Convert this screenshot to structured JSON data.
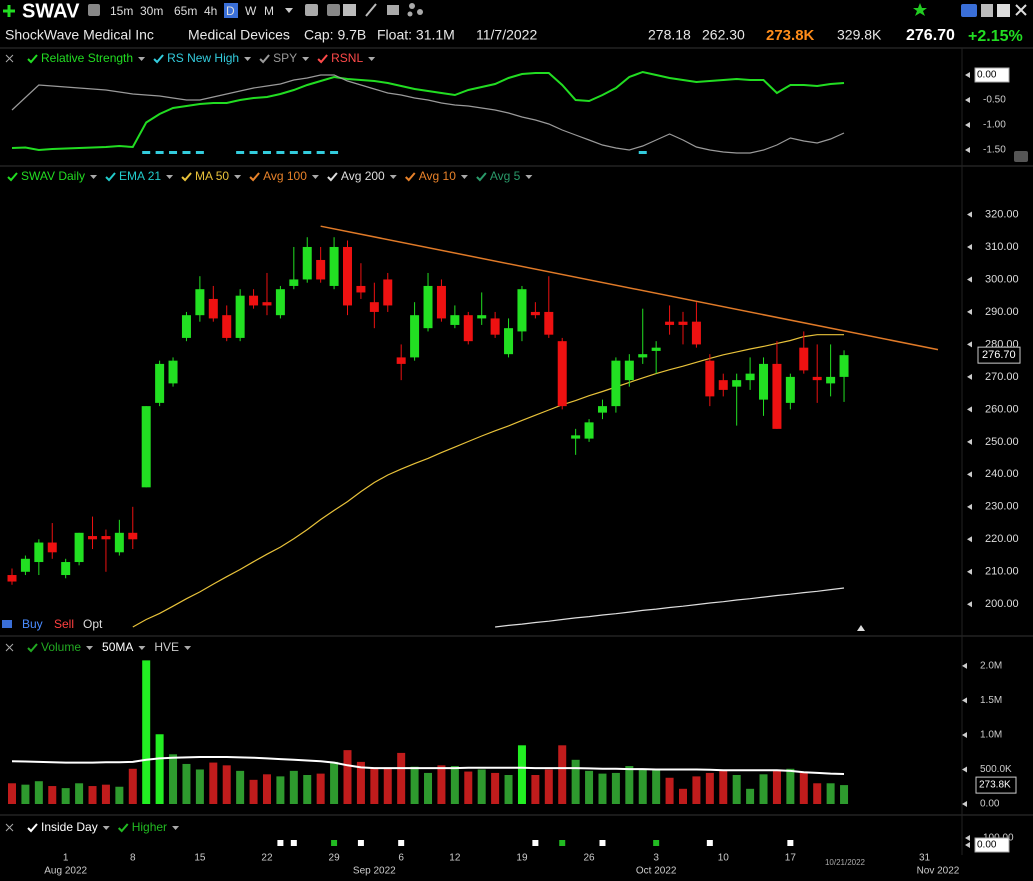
{
  "header": {
    "symbol": "SWAV",
    "timeframes": [
      "15m",
      "30m",
      "65m",
      "4h",
      "D",
      "W",
      "M"
    ],
    "active_timeframe": 4,
    "company": "ShockWave Medical Inc",
    "sector": "Medical Devices",
    "cap": "Cap: 9.7B",
    "float": "Float: 31.1M",
    "date": "11/7/2022",
    "high": "278.18",
    "low": "262.30",
    "volume": "273.8K",
    "avg_volume": "329.8K",
    "last": "276.70",
    "change": "+2.15%"
  },
  "controls": {
    "buy": "Buy",
    "sell": "Sell",
    "opt": "Opt"
  },
  "x_axis": {
    "dates": [
      "2022-07-26",
      "2022-07-27",
      "2022-07-28",
      "2022-07-29",
      "2022-08-01",
      "2022-08-02",
      "2022-08-03",
      "2022-08-04",
      "2022-08-05",
      "2022-08-08",
      "2022-08-09",
      "2022-08-10",
      "2022-08-11",
      "2022-08-12",
      "2022-08-15",
      "2022-08-16",
      "2022-08-17",
      "2022-08-18",
      "2022-08-19",
      "2022-08-22",
      "2022-08-23",
      "2022-08-24",
      "2022-08-25",
      "2022-08-26",
      "2022-08-29",
      "2022-08-30",
      "2022-08-31",
      "2022-09-01",
      "2022-09-02",
      "2022-09-06",
      "2022-09-07",
      "2022-09-08",
      "2022-09-09",
      "2022-09-12",
      "2022-09-13",
      "2022-09-14",
      "2022-09-15",
      "2022-09-16",
      "2022-09-19",
      "2022-09-20",
      "2022-09-21",
      "2022-09-22",
      "2022-09-23",
      "2022-09-26",
      "2022-09-27",
      "2022-09-28",
      "2022-09-29",
      "2022-09-30",
      "2022-10-03",
      "2022-10-04",
      "2022-10-05",
      "2022-10-06",
      "2022-10-07",
      "2022-10-10",
      "2022-10-11",
      "2022-10-12",
      "2022-10-13",
      "2022-10-14",
      "2022-10-17",
      "2022-10-18",
      "2022-10-19",
      "2022-10-20",
      "2022-10-21"
    ],
    "xticks": [
      {
        "value": "2022-08-01",
        "label": "1"
      },
      {
        "value": "2022-08-08",
        "label": "8"
      },
      {
        "value": "2022-08-15",
        "label": "15"
      },
      {
        "value": "2022-08-22",
        "label": "22"
      },
      {
        "value": "2022-08-29",
        "label": "29"
      },
      {
        "value": "2022-09-06",
        "label": "6"
      },
      {
        "value": "2022-09-12",
        "label": "12"
      },
      {
        "value": "2022-09-19",
        "label": "19"
      },
      {
        "value": "2022-09-26",
        "label": "26"
      },
      {
        "value": "2022-10-03",
        "label": "3"
      },
      {
        "value": "2022-10-10",
        "label": "10"
      },
      {
        "value": "2022-10-17",
        "label": "17"
      },
      {
        "value": "2022-10-31",
        "label": "31"
      }
    ],
    "month_ticks": [
      {
        "value": "2022-08-01",
        "label": "Aug 2022"
      },
      {
        "value": "2022-09-01",
        "label": "Sep 2022"
      },
      {
        "value": "2022-10-03",
        "label": "Oct 2022"
      },
      {
        "value": "2022-11-01",
        "label": "Nov 2022"
      }
    ],
    "cursor_label": "10/21/2022"
  },
  "chart_data": [
    {
      "type": "line",
      "ylim": [
        -1.7,
        0.14
      ],
      "yticks": [
        {
          "value": 0,
          "label": "0.00"
        },
        {
          "value": -0.5,
          "label": "-0.50"
        },
        {
          "value": -1,
          "label": "-1.00"
        },
        {
          "value": -1.5,
          "label": "-1.50"
        }
      ],
      "highlight_tick": 0,
      "series": [
        {
          "name": "Relative Strength",
          "color": "#22dd22",
          "values": [
            -1.46,
            -1.45,
            -1.5,
            -1.48,
            -1.47,
            -1.46,
            -1.45,
            -1.44,
            -1.42,
            -1.44,
            -0.95,
            -0.78,
            -0.66,
            -0.62,
            -0.58,
            -0.56,
            -0.56,
            -0.5,
            -0.46,
            -0.44,
            -0.38,
            -0.3,
            -0.2,
            -0.12,
            -0.04,
            -0.08,
            -0.1,
            -0.12,
            -0.16,
            -0.22,
            -0.28,
            -0.32,
            -0.36,
            -0.4,
            -0.3,
            -0.24,
            -0.18,
            -0.06,
            0.02,
            0.04,
            0.04,
            -0.2,
            -0.5,
            -0.52,
            -0.4,
            -0.26,
            -0.04,
            0.06,
            0,
            -0.06,
            -0.1,
            -0.14,
            -0.12,
            -0.1,
            -0.08,
            -0.1,
            -0.1,
            -0.36,
            -0.2,
            -0.2,
            -0.22,
            -0.18,
            -0.16
          ]
        },
        {
          "name": "RS New High",
          "color": "#33ccdd",
          "dates": [
            "2022-08-09",
            "2022-08-10",
            "2022-08-11",
            "2022-08-12",
            "2022-08-15",
            "2022-08-18",
            "2022-08-19",
            "2022-08-22",
            "2022-08-23",
            "2022-08-24",
            "2022-08-25",
            "2022-08-26",
            "2022-08-29",
            "2022-09-30"
          ]
        },
        {
          "name": "SPY",
          "color": "#9a9a9a",
          "values": [
            -0.7,
            -0.45,
            -0.2,
            -0.22,
            -0.24,
            -0.26,
            -0.28,
            -0.3,
            -0.34,
            -0.38,
            -0.4,
            -0.42,
            -0.46,
            -0.5,
            -0.5,
            -0.44,
            -0.38,
            -0.32,
            -0.26,
            -0.22,
            -0.18,
            -0.1,
            -0.06,
            0,
            0,
            -0.12,
            -0.2,
            -0.28,
            -0.36,
            -0.4,
            -0.46,
            -0.5,
            -0.56,
            -0.6,
            -0.62,
            -0.66,
            -0.7,
            -0.76,
            -0.84,
            -0.9,
            -0.98,
            -1.1,
            -1.2,
            -1.3,
            -1.4,
            -1.46,
            -1.5,
            -1.42,
            -1.3,
            -1.18,
            -1.3,
            -1.44,
            -1.5,
            -1.54,
            -1.56,
            -1.56,
            -1.5,
            -1.4,
            -1.26,
            -1.32,
            -1.36,
            -1.28,
            -1.16
          ]
        },
        {
          "name": "RSNL",
          "color": "#ff4a4a"
        }
      ]
    },
    {
      "type": "candlestick",
      "ylim": [
        193,
        326
      ],
      "yticks": [
        {
          "value": 200,
          "label": "200.00"
        },
        {
          "value": 210,
          "label": "210.00"
        },
        {
          "value": 220,
          "label": "220.00"
        },
        {
          "value": 230,
          "label": "230.00"
        },
        {
          "value": 240,
          "label": "240.00"
        },
        {
          "value": 250,
          "label": "250.00"
        },
        {
          "value": 260,
          "label": "260.00"
        },
        {
          "value": 270,
          "label": "270.00"
        },
        {
          "value": 280,
          "label": "280.00"
        },
        {
          "value": 290,
          "label": "290.00"
        },
        {
          "value": 300,
          "label": "300.00"
        },
        {
          "value": 310,
          "label": "310.00"
        },
        {
          "value": 320,
          "label": "320.00"
        }
      ],
      "last_price": {
        "value": 276.7,
        "label": "276.70"
      },
      "up_color": "#22e022",
      "down_color": "#ee1111",
      "series": [
        {
          "name": "SWAV Daily",
          "color": "#22dd22",
          "open": [
            209,
            210,
            213,
            219,
            209,
            213,
            221,
            221,
            216,
            222,
            236,
            262,
            268,
            282,
            289,
            294,
            289,
            282,
            295,
            293,
            289,
            298,
            300,
            306,
            298,
            310,
            298,
            293,
            300,
            276,
            276,
            285,
            298,
            286,
            289,
            288,
            288,
            277,
            284,
            290,
            290,
            281,
            251,
            251,
            259,
            261,
            269,
            276,
            278,
            287,
            287,
            287,
            275,
            269,
            267,
            269,
            263,
            274,
            262,
            279,
            270,
            268,
            270
          ],
          "high": [
            211,
            215,
            220,
            225,
            214,
            222,
            227,
            223,
            226,
            230,
            261,
            275,
            276,
            290,
            301,
            298,
            292,
            297,
            297,
            302,
            298,
            310,
            313,
            310,
            313,
            312,
            305,
            299,
            302,
            280,
            293,
            302,
            300,
            292,
            290,
            296,
            290,
            288,
            298,
            293,
            301,
            282,
            254,
            257,
            263,
            276,
            277,
            291,
            281,
            292,
            290,
            293,
            277,
            271,
            271,
            276,
            276,
            281,
            271,
            284,
            280,
            280,
            278.18
          ],
          "low": [
            206,
            209,
            209,
            214,
            208,
            212,
            217,
            210,
            215,
            217,
            236,
            261,
            267,
            281,
            287,
            287,
            281,
            281,
            291,
            289,
            288,
            297,
            299,
            299,
            297,
            289,
            294,
            285,
            290,
            269,
            275,
            284,
            287,
            285,
            280,
            286,
            282,
            276,
            281,
            288,
            282,
            260,
            246,
            250,
            257,
            259,
            267,
            274,
            271,
            283,
            280,
            279,
            261,
            264,
            255,
            266,
            258,
            254,
            260,
            271,
            262,
            264,
            262.3
          ],
          "close": [
            207,
            214,
            219,
            216,
            213,
            222,
            220,
            220,
            222,
            220,
            261,
            274,
            275,
            289,
            297,
            288,
            282,
            295,
            292,
            292,
            297,
            300,
            310,
            300,
            310,
            292,
            296,
            290,
            292,
            274,
            289,
            298,
            288,
            289,
            281,
            289,
            283,
            285,
            297,
            289,
            283,
            261,
            252,
            256,
            261,
            275,
            275,
            277,
            279,
            286,
            286,
            280,
            264,
            266,
            269,
            271,
            274,
            254,
            270,
            272,
            269,
            270,
            276.7
          ]
        },
        {
          "name": "EMA 21",
          "color": "#22cccc"
        },
        {
          "name": "MA 50",
          "color": "#e8c23a",
          "values": [
            null,
            null,
            null,
            null,
            null,
            null,
            null,
            null,
            null,
            193,
            195.3,
            197.2,
            199.4,
            201.7,
            203.8,
            206.2,
            208.5,
            210.7,
            213.1,
            215.4,
            217.6,
            220.2,
            223,
            226.1,
            228.9,
            231.6,
            234.7,
            237.5,
            239.8,
            241.6,
            243.3,
            244.9,
            246.7,
            248.4,
            250.1,
            251.8,
            253.4,
            254.9,
            256.6,
            258.2,
            259.8,
            261.4,
            262.7,
            264.2,
            265.5,
            266.9,
            268.3,
            269.7,
            271,
            272.2,
            273.3,
            274.5,
            275.7,
            276.8,
            277.7,
            278.6,
            279.4,
            280.3,
            281.2,
            282.4,
            283,
            283,
            283
          ]
        },
        {
          "name": "Avg 100",
          "color": "#e8822a"
        },
        {
          "name": "Avg 200",
          "color": "#dddddd",
          "values": [
            null,
            null,
            null,
            null,
            null,
            null,
            null,
            null,
            null,
            null,
            null,
            null,
            null,
            null,
            null,
            null,
            null,
            null,
            null,
            null,
            null,
            null,
            null,
            null,
            null,
            null,
            null,
            null,
            null,
            null,
            null,
            null,
            null,
            null,
            null,
            null,
            193,
            193.5,
            193.9,
            194.4,
            194.8,
            195.3,
            195.8,
            196.2,
            196.7,
            197.1,
            197.6,
            198.1,
            198.5,
            199,
            199.4,
            199.9,
            200.4,
            200.8,
            201.3,
            201.7,
            202.2,
            202.7,
            203.1,
            203.6,
            204,
            204.5,
            205
          ]
        },
        {
          "name": "Avg 10",
          "color": "#e8822a"
        },
        {
          "name": "Avg 5",
          "color": "#2a9a6a"
        }
      ],
      "trendline": {
        "color": "#e07a28",
        "points": [
          {
            "date": "2022-08-26",
            "value": 316.4
          },
          {
            "date": "2022-11-01",
            "value": 278.4
          }
        ]
      }
    },
    {
      "type": "bar",
      "ylim": [
        0,
        2100000
      ],
      "yticks": [
        {
          "value": 0,
          "label": "0.00"
        },
        {
          "value": 500000,
          "label": "500.0K"
        },
        {
          "value": 1000000,
          "label": "1.0M"
        },
        {
          "value": 1500000,
          "label": "1.5M"
        },
        {
          "value": 2000000,
          "label": "2.0M"
        }
      ],
      "last_value": {
        "value": 273800,
        "label": "273.8K"
      },
      "up_color": "#2e9a2e",
      "down_color": "#c01c1c",
      "high_color": "#22ee22",
      "series": [
        {
          "name": "Volume",
          "color": "#22aa22",
          "values": [
            300000,
            280000,
            330000,
            260000,
            230000,
            300000,
            260000,
            280000,
            250000,
            510000,
            2080000,
            1010000,
            720000,
            580000,
            500000,
            600000,
            560000,
            480000,
            350000,
            430000,
            400000,
            480000,
            420000,
            440000,
            610000,
            780000,
            610000,
            520000,
            510000,
            740000,
            540000,
            450000,
            560000,
            550000,
            470000,
            500000,
            450000,
            420000,
            850000,
            420000,
            500000,
            850000,
            640000,
            480000,
            440000,
            450000,
            550000,
            510000,
            510000,
            380000,
            220000,
            400000,
            450000,
            480000,
            420000,
            220000,
            430000,
            480000,
            510000,
            450000,
            300000,
            300000,
            273800
          ]
        },
        {
          "name": "50MA",
          "color": "#ffffff",
          "values": [
            620000,
            615000,
            610000,
            605000,
            600000,
            600000,
            600000,
            605000,
            605000,
            610000,
            640000,
            660000,
            670000,
            675000,
            680000,
            680000,
            680000,
            675000,
            670000,
            660000,
            650000,
            640000,
            630000,
            620000,
            600000,
            560000,
            530000,
            520000,
            520000,
            520000,
            520000,
            520000,
            520000,
            520000,
            525000,
            525000,
            525000,
            525000,
            525000,
            520000,
            520000,
            520000,
            520000,
            515000,
            510000,
            510000,
            505000,
            505000,
            500000,
            500000,
            500000,
            500000,
            495000,
            490000,
            490000,
            490000,
            490000,
            490000,
            480000,
            460000,
            450000,
            440000,
            435000
          ]
        },
        {
          "name": "HVE",
          "color": "#cccccc"
        }
      ]
    },
    {
      "type": "marker",
      "ylim": [
        0,
        100
      ],
      "yticks": [
        {
          "value": 100,
          "label": "100.00"
        },
        {
          "value": 0,
          "label": "0.00"
        }
      ],
      "highlight_tick": 1,
      "series": [
        {
          "name": "Inside Day",
          "color": "#ffffff",
          "dates": [
            "2022-08-23",
            "2022-08-24",
            "2022-08-31",
            "2022-09-06",
            "2022-09-20",
            "2022-09-27",
            "2022-10-07",
            "2022-10-17"
          ]
        },
        {
          "name": "Higher",
          "color": "#22bb22",
          "dates": [
            "2022-08-29",
            "2022-09-22",
            "2022-10-03"
          ]
        }
      ]
    }
  ]
}
